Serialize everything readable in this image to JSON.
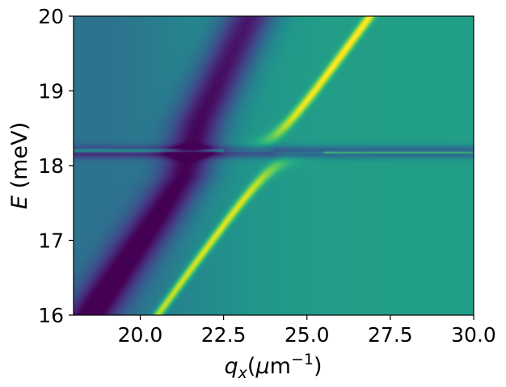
{
  "chart_data": {
    "type": "heatmap",
    "title": "",
    "xlabel": {
      "symbol": "q",
      "subscript": "x",
      "unit_open": "(",
      "unit_mu": "μ",
      "unit_base": "m",
      "unit_exp": "−1",
      "unit_close": ")"
    },
    "ylabel": {
      "symbol": "E",
      "unit": " (meV)"
    },
    "xlim": [
      18.0,
      30.0
    ],
    "ylim": [
      16.0,
      20.0
    ],
    "xticks": [
      20.0,
      22.5,
      25.0,
      27.5,
      30.0
    ],
    "xtick_labels": [
      "20.0",
      "22.5",
      "25.0",
      "27.5",
      "30.0"
    ],
    "yticks": [
      16,
      17,
      18,
      19,
      20
    ],
    "ytick_labels": [
      "16",
      "17",
      "18",
      "19",
      "20"
    ],
    "colormap": "viridis",
    "colorbar": false,
    "grid": false,
    "features": {
      "flat_mode_energy": 18.18,
      "anticrossing_center_x": 24.0,
      "dispersive_branch_slope_meV_per_um_inv": 0.62,
      "bright_branch": [
        {
          "x": 21.0,
          "y": 16.0
        },
        {
          "x": 22.5,
          "y": 17.0
        },
        {
          "x": 23.9,
          "y": 17.95
        },
        {
          "x": 25.0,
          "y": 18.08
        },
        {
          "x": 27.5,
          "y": 18.14
        },
        {
          "x": 30.0,
          "y": 18.15
        }
      ],
      "bright_branch_upper": [
        {
          "x": 18.0,
          "y": 18.2
        },
        {
          "x": 22.0,
          "y": 18.22
        },
        {
          "x": 24.0,
          "y": 18.35
        },
        {
          "x": 25.0,
          "y": 18.9
        },
        {
          "x": 26.5,
          "y": 20.0
        }
      ],
      "dark_branch": [
        {
          "x": 18.5,
          "y": 16.0
        },
        {
          "x": 20.5,
          "y": 17.3
        },
        {
          "x": 21.3,
          "y": 17.85
        },
        {
          "x": 21.8,
          "y": 18.6
        },
        {
          "x": 23.3,
          "y": 20.0
        }
      ]
    },
    "colors": {
      "viridis_dark": "#440154",
      "viridis_blue": "#3b528b",
      "viridis_teal": "#21918c",
      "viridis_green": "#5ec962",
      "viridis_yellow": "#fde725"
    }
  }
}
